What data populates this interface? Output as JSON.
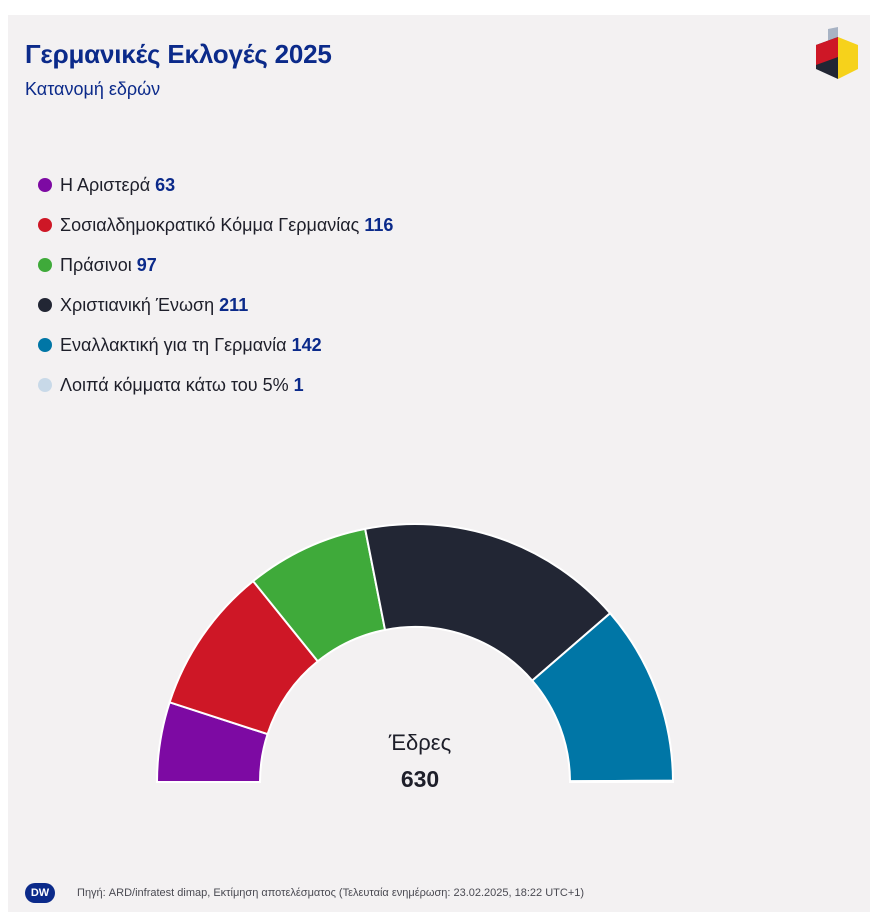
{
  "header": {
    "title": "Γερμανικές Εκλογές 2025",
    "subtitle": "Κατανομή εδρών"
  },
  "chart_data": {
    "type": "pie",
    "subtype": "half-donut",
    "title": "Γερμανικές Εκλογές 2025",
    "subtitle": "Κατανομή εδρών",
    "series": [
      {
        "name": "Η Αριστερά",
        "value": 63,
        "color": "#7d0aa3"
      },
      {
        "name": "Σοσιαλδημοκρατικό Κόμμα Γερμανίας",
        "value": 116,
        "color": "#ce1726"
      },
      {
        "name": "Πράσινοι",
        "value": 97,
        "color": "#3faa3a"
      },
      {
        "name": "Χριστιανική Ένωση",
        "value": 211,
        "color": "#222634"
      },
      {
        "name": "Εναλλακτική για τη Γερμανία",
        "value": 142,
        "color": "#0076a6"
      },
      {
        "name": "Λοιπά κόμματα κάτω του 5%",
        "value": 1,
        "color": "#c8d9e8"
      }
    ],
    "center_label": "Έδρες",
    "center_value": "630",
    "legend_position": "top-left"
  },
  "footer": {
    "logo_text": "DW",
    "source": "Πηγή: ARD/infratest dimap, Εκτίμηση αποτελέσματος (Τελευταία ενημέρωση: 23.02.2025, 18:22 UTC+1)"
  },
  "colors": {
    "title": "#0b2a8a",
    "background": "#f3f1f2"
  }
}
